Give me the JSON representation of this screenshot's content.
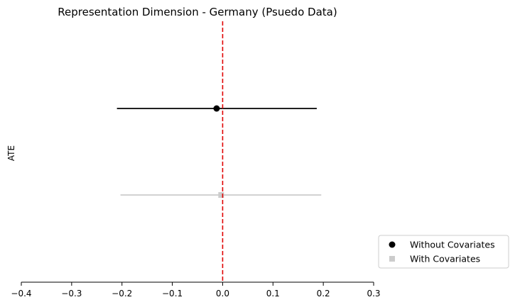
{
  "chart_data": {
    "type": "errorbar",
    "title": "Representation Dimension - Germany (Psuedo Data)",
    "xlabel": "",
    "ylabel": "ATE",
    "xlim": [
      -0.4,
      0.3
    ],
    "xticks": [
      -0.4,
      -0.3,
      -0.2,
      -0.1,
      0.0,
      0.1,
      0.2,
      0.3
    ],
    "xtick_labels": [
      "−0.4",
      "−0.3",
      "−0.2",
      "−0.1",
      "0.0",
      "0.1",
      "0.2",
      "0.3"
    ],
    "grid": false,
    "legend_position": "lower-right-outside",
    "reference_line": {
      "x": 0.0,
      "style": "dashed",
      "color": "#e00000"
    },
    "series": [
      {
        "name": "Without Covariates",
        "estimate": -0.012,
        "ci_low": -0.21,
        "ci_high": 0.187,
        "marker": "circle",
        "color": "#000000",
        "row": 1
      },
      {
        "name": "With Covariates",
        "estimate": -0.003,
        "ci_low": -0.203,
        "ci_high": 0.196,
        "marker": "square",
        "color": "#cccccc",
        "row": 2
      }
    ]
  }
}
